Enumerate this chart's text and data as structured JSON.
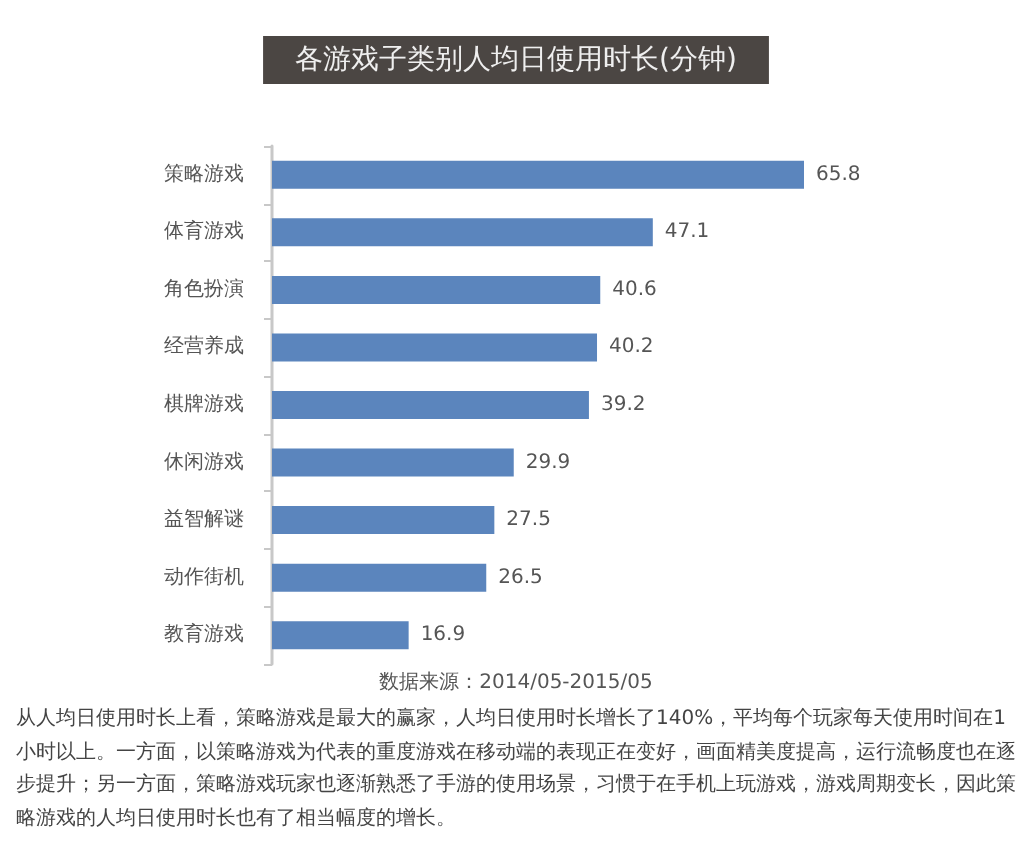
{
  "chart_data": {
    "type": "bar",
    "orientation": "horizontal",
    "title": "各游戏子类别人均日使用时长(分钟)",
    "categories": [
      "策略游戏",
      "体育游戏",
      "角色扮演",
      "经营养成",
      "棋牌游戏",
      "休闲游戏",
      "益智解谜",
      "动作街机",
      "教育游戏"
    ],
    "values": [
      65.8,
      47.1,
      40.6,
      40.2,
      39.2,
      29.9,
      27.5,
      26.5,
      16.9
    ],
    "color": "#5b85bd",
    "data_labels": true,
    "annotations": [
      "数据来源：2014/05-2015/05",
      "从人均日使用时长上看，策略游戏是最大的赢家，人均日使用时长增长了140%，平均每个玩家每天使用时间在1小时以上。一方面，以策略游戏为代表的重度游戏在移动端的表现正在变好，画面精美度提高，运行流畅度也在逐步提升；另一方面，策略游戏玩家也逐渐熟悉了手游的使用场景，习惯于在手机上玩游戏，游戏周期变长，因此策略游戏的人均日使用时长也有了相当幅度的增长。"
    ]
  }
}
